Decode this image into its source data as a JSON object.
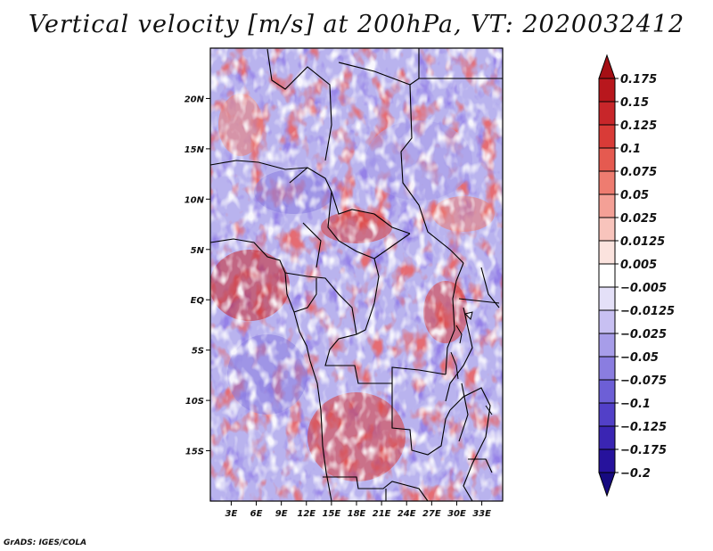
{
  "title": "Vertical velocity [m/s] at 200hPa, VT: 2020032412",
  "credit": "GrADS: IGES/COLA",
  "map": {
    "variable": "Vertical velocity",
    "units": "m/s",
    "level": "200hPa",
    "valid_time": "2020032412",
    "lat_labels": [
      "20N",
      "15N",
      "10N",
      "5N",
      "EQ",
      "5S",
      "10S",
      "15S"
    ],
    "lat_values": [
      20,
      15,
      10,
      5,
      0,
      -5,
      -10,
      -15
    ],
    "lon_labels": [
      "3E",
      "6E",
      "9E",
      "12E",
      "15E",
      "18E",
      "21E",
      "24E",
      "27E",
      "30E",
      "33E"
    ],
    "lon_values": [
      3,
      6,
      9,
      12,
      15,
      18,
      21,
      24,
      27,
      30,
      33
    ],
    "lon_range": [
      0.5,
      35.5
    ],
    "lat_range": [
      -20,
      25
    ]
  },
  "colorbar": {
    "labels": [
      "0.175",
      "0.15",
      "0.125",
      "0.1",
      "0.075",
      "0.05",
      "0.025",
      "0.0125",
      "0.005",
      "−0.005",
      "−0.0125",
      "−0.025",
      "−0.05",
      "−0.075",
      "−0.1",
      "−0.125",
      "−0.175",
      "−0.2"
    ],
    "colors": [
      "#a50f15",
      "#b8171d",
      "#c8262a",
      "#d93b37",
      "#e55a50",
      "#ee7c70",
      "#f4a096",
      "#f8c4bc",
      "#fbe3de",
      "#ffffff",
      "#e4e0f8",
      "#c8c0f2",
      "#a79de9",
      "#8a7de0",
      "#6d5fd6",
      "#5240c8",
      "#3a25b3",
      "#26129c",
      "#160a80"
    ]
  },
  "colors": {
    "red_core": "#c8262a",
    "blue_core": "#5a48d2",
    "background_field": "#b8b2ee"
  }
}
